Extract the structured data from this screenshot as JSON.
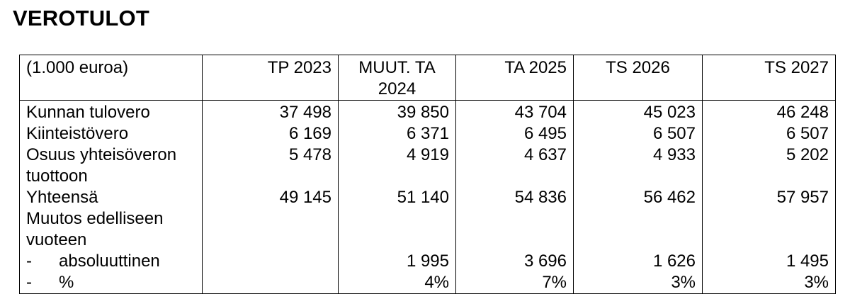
{
  "title": "VEROTULOT",
  "table": {
    "unit_label": "(1.000 euroa)",
    "columns": [
      "TP 2023",
      "MUUT. TA 2024",
      "TA 2025",
      "TS 2026",
      "TS 2027"
    ],
    "rows": [
      {
        "label": "Kunnan tulovero",
        "values": [
          "37 498",
          "39 850",
          "43 704",
          "45 023",
          "46 248"
        ]
      },
      {
        "label": "Kiinteistövero",
        "values": [
          "6 169",
          "6 371",
          "6 495",
          "6 507",
          "6 507"
        ]
      },
      {
        "label": "Osuus yhteisöveron tuottoon",
        "values": [
          "5 478",
          "4 919",
          "4 637",
          "4 933",
          "5 202"
        ]
      },
      {
        "label": "Yhteensä",
        "values": [
          "49 145",
          "51 140",
          "54 836",
          "56 462",
          "57 957"
        ]
      },
      {
        "label": "Muutos edelliseen vuoteen",
        "values": [
          "",
          "",
          "",
          "",
          ""
        ]
      },
      {
        "prefix": "-",
        "label": "absoluuttinen",
        "values": [
          "",
          "1 995",
          "3 696",
          "1 626",
          "1 495"
        ]
      },
      {
        "prefix": "-",
        "label": "%",
        "values": [
          "",
          "4%",
          "7%",
          "3%",
          "3%"
        ]
      }
    ]
  }
}
